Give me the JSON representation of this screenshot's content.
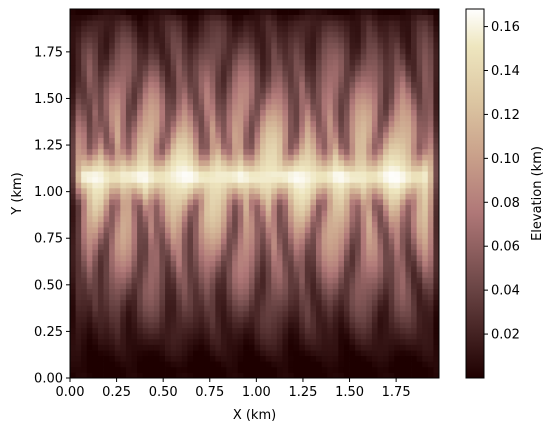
{
  "chart_data": {
    "type": "heatmap",
    "title": "",
    "xlabel": "X (km)",
    "ylabel": "Y (km)",
    "xlim": [
      0,
      1.98
    ],
    "ylim": [
      0,
      1.98
    ],
    "x_ticks": [
      0.0,
      0.25,
      0.5,
      0.75,
      1.0,
      1.25,
      1.5,
      1.75
    ],
    "x_tick_labels": [
      "0.00",
      "0.25",
      "0.50",
      "0.75",
      "1.00",
      "1.25",
      "1.50",
      "1.75"
    ],
    "y_ticks": [
      0.0,
      0.25,
      0.5,
      0.75,
      1.0,
      1.25,
      1.5,
      1.75
    ],
    "y_tick_labels": [
      "0.00",
      "0.25",
      "0.50",
      "0.75",
      "1.00",
      "1.25",
      "1.50",
      "1.75"
    ],
    "colorbar": {
      "label": "Elevation (km)",
      "range": [
        0.0,
        0.168
      ],
      "ticks": [
        0.02,
        0.04,
        0.06,
        0.08,
        0.1,
        0.12,
        0.14,
        0.16
      ],
      "tick_labels": [
        "0.02",
        "0.04",
        "0.06",
        "0.08",
        "0.10",
        "0.12",
        "0.14",
        "0.16"
      ],
      "colormap": "pink",
      "colormap_stops": [
        {
          "t": 0.0,
          "color": "#1e0000"
        },
        {
          "t": 0.25,
          "color": "#6d4747"
        },
        {
          "t": 0.45,
          "color": "#b07878"
        },
        {
          "t": 0.6,
          "color": "#c9a08a"
        },
        {
          "t": 0.75,
          "color": "#dcc6a2"
        },
        {
          "t": 0.9,
          "color": "#eee6bf"
        },
        {
          "t": 1.0,
          "color": "#ffffff"
        }
      ]
    },
    "grid": false,
    "features": {
      "ridge_y_km": 1.08,
      "channel_x_km": [
        0.07,
        0.2,
        0.35,
        0.5,
        0.68,
        0.85,
        1.0,
        1.17,
        1.33,
        1.5,
        1.67,
        1.85
      ],
      "edge_elevation_km": 0.0,
      "ridge_elevation_km": 0.168
    }
  }
}
